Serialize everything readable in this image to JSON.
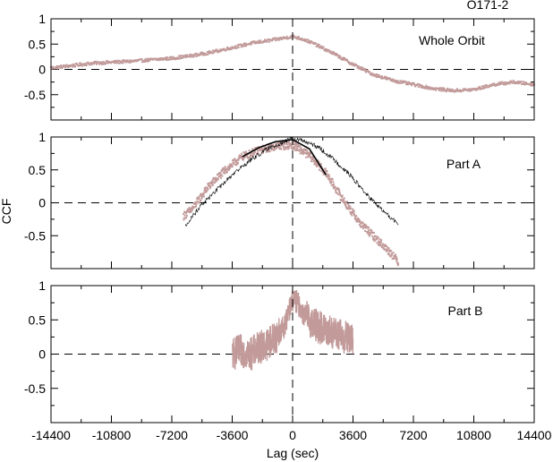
{
  "figure": {
    "title": "O171-2",
    "xlabel": "Lag (sec)",
    "ylabel": "CCF"
  },
  "colors": {
    "series": "#c29a9a",
    "model": "#000000",
    "axes": "#000000"
  },
  "chart_data": [
    {
      "type": "scatter",
      "annotation": "Whole Orbit",
      "xlim": [
        -14400,
        14400
      ],
      "ylim": [
        -1,
        1
      ],
      "ytick_labels": [
        "1",
        "0.5",
        "0",
        "-0.5"
      ],
      "reference_lines": {
        "x0": 0,
        "y0": 0
      },
      "series": [
        {
          "style": "dense-points",
          "x": [
            -14400,
            -13000,
            -12000,
            -10800,
            -9600,
            -8400,
            -7200,
            -6000,
            -4800,
            -3600,
            -2400,
            -1200,
            0,
            600,
            1200,
            2400,
            3600,
            4800,
            6000,
            7200,
            8400,
            9600,
            10800,
            12000,
            13200,
            14400
          ],
          "y": [
            0.03,
            0.08,
            0.12,
            0.14,
            0.16,
            0.19,
            0.22,
            0.27,
            0.34,
            0.43,
            0.52,
            0.58,
            0.65,
            0.6,
            0.52,
            0.32,
            0.1,
            -0.1,
            -0.22,
            -0.3,
            -0.38,
            -0.42,
            -0.4,
            -0.3,
            -0.25,
            -0.3
          ]
        }
      ]
    },
    {
      "type": "scatter",
      "annotation": "Part A",
      "xlim": [
        -14400,
        14400
      ],
      "ylim": [
        -1,
        1
      ],
      "ytick_labels": [
        "1",
        "0.5",
        "0",
        "-0.5"
      ],
      "reference_lines": {
        "x0": 0,
        "y0": 0
      },
      "series": [
        {
          "style": "dense-points",
          "x": [
            -6500,
            -6000,
            -5000,
            -4000,
            -3000,
            -2000,
            -1000,
            0,
            1000,
            2000,
            3000,
            4000,
            5000,
            6000,
            6300
          ],
          "y": [
            -0.2,
            -0.1,
            0.25,
            0.5,
            0.7,
            0.8,
            0.86,
            0.88,
            0.72,
            0.45,
            0.05,
            -0.3,
            -0.55,
            -0.8,
            -0.9
          ]
        },
        {
          "style": "thin-line",
          "x": [
            -6400,
            -5500,
            -4500,
            -3500,
            -2500,
            -1500,
            -500,
            0,
            500,
            1500,
            2500,
            3500,
            4500,
            5500,
            6300
          ],
          "y": [
            -0.35,
            -0.05,
            0.2,
            0.45,
            0.65,
            0.82,
            0.93,
            0.97,
            0.95,
            0.85,
            0.65,
            0.4,
            0.1,
            -0.15,
            -0.33
          ]
        },
        {
          "style": "fit-curve",
          "x": [
            -3000,
            -2000,
            -1000,
            0,
            1000,
            2000
          ],
          "y": [
            0.7,
            0.84,
            0.93,
            0.96,
            0.82,
            0.42
          ]
        }
      ]
    },
    {
      "type": "line",
      "annotation": "Part B",
      "xlim": [
        -14400,
        14400
      ],
      "ylim": [
        -1,
        1
      ],
      "ytick_labels": [
        "1",
        "0.5",
        "0",
        "-0.5"
      ],
      "xtick_labels": [
        "-14400",
        "-10800",
        "-7200",
        "-3600",
        "0",
        "3600",
        "7200",
        "10800",
        "14400"
      ],
      "reference_lines": {
        "x0": 0,
        "y0": 0
      },
      "series": [
        {
          "style": "noisy-line",
          "x": [
            -3600,
            -3000,
            -2500,
            -2000,
            -1500,
            -1000,
            -500,
            0,
            300,
            600,
            1000,
            1500,
            2000,
            2500,
            3000,
            3600
          ],
          "y": [
            0.0,
            0.05,
            0.0,
            0.1,
            0.15,
            0.25,
            0.4,
            0.8,
            0.75,
            0.6,
            0.5,
            0.4,
            0.35,
            0.3,
            0.25,
            0.2
          ]
        }
      ]
    }
  ]
}
